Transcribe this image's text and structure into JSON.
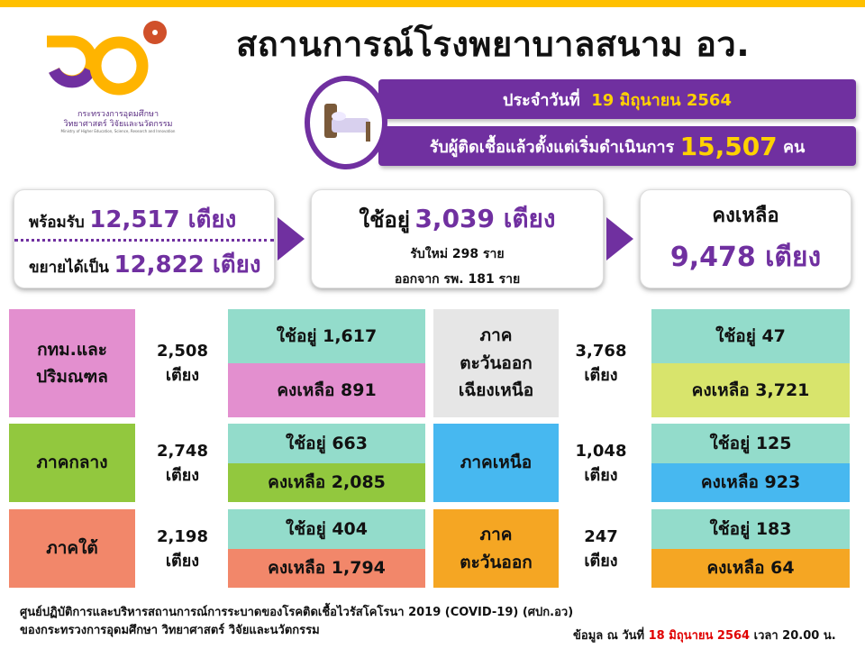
{
  "header": {
    "title": "สถานการณ์โรงพยาบาลสนาม อว.",
    "logo_text": [
      "กระทรวงการอุดมศึกษา",
      "วิทยาศาสตร์ วิจัยและนวัตกรรม",
      "Ministry of Higher Education, Science, Research and Innovation"
    ],
    "date_prefix": "ประจำวันที่",
    "date_value": "19 มิถุนายน 2564",
    "total_prefix": "รับผู้ติดเชื้อแล้วตั้งแต่เริ่มดำเนินการ",
    "total_value": "15,507",
    "total_unit": "คน"
  },
  "summary": {
    "ready_label": "พร้อมรับ",
    "ready_value": "12,517 เตียง",
    "expand_label": "ขยายได้เป็น",
    "expand_value": "12,822 เตียง",
    "in_use_label": "ใช้อยู่",
    "in_use_value": "3,039 เตียง",
    "new_in": "รับใหม่  298  ราย",
    "discharged": "ออกจาก รพ. 181 ราย",
    "remaining_label": "คงเหลือ",
    "remaining_value": "9,478 เตียง"
  },
  "regions": [
    {
      "name": "กทม.และ ปริมณฑล",
      "beds": "2,508",
      "unit": "เตียง",
      "in_use": "ใช้อยู่  1,617",
      "remaining": "คงเหลือ  891",
      "label_color": "#E38FCF",
      "use_color": "#93DCCB",
      "rem_color": "#E38FCF"
    },
    {
      "name": "ภาค ตะวันออก เฉียงเหนือ",
      "beds": "3,768",
      "unit": "เตียง",
      "in_use": "ใช้อยู่   47",
      "remaining": "คงเหลือ  3,721",
      "label_color": "#E6E6E6",
      "use_color": "#93DCCB",
      "rem_color": "#D8E46C"
    },
    {
      "name": "ภาคกลาง",
      "beds": "2,748",
      "unit": "เตียง",
      "in_use": "ใช้อยู่  663",
      "remaining": "คงเหลือ  2,085",
      "label_color": "#92C83E",
      "use_color": "#93DCCB",
      "rem_color": "#92C83E"
    },
    {
      "name": "ภาคเหนือ",
      "beds": "1,048",
      "unit": "เตียง",
      "in_use": "ใช้อยู่  125",
      "remaining": "คงเหลือ  923",
      "label_color": "#47B8F0",
      "use_color": "#93DCCB",
      "rem_color": "#47B8F0"
    },
    {
      "name": "ภาคใต้",
      "beds": "2,198",
      "unit": "เตียง",
      "in_use": "ใช้อยู่  404",
      "remaining": "คงเหลือ 1,794",
      "label_color": "#F2876A",
      "use_color": "#93DCCB",
      "rem_color": "#F2876A"
    },
    {
      "name": "ภาค ตะวันออก",
      "beds": "247",
      "unit": "เตียง",
      "in_use": "ใช้อยู่  183",
      "remaining": "คงเหลือ  64",
      "label_color": "#F5A623",
      "use_color": "#93DCCB",
      "rem_color": "#F5A623"
    }
  ],
  "footer": {
    "line1": "ศูนย์ปฏิบัติการและบริหารสถานการณ์การระบาดของโรคติดเชื้อไวรัสโคโรนา  2019 (COVID-19) (ศปก.อว)",
    "line2": "ของกระทรวงการอุดมศึกษา  วิทยาศาสตร์ วิจัยและนวัตกรรม",
    "data_prefix": "ข้อมูล ณ วันที่",
    "data_date": "18 มิถุนายน 2564",
    "data_suffix": "เวลา  20.00 น."
  },
  "colors": {
    "brand_purple": "#7030A0",
    "brand_yellow": "#FFC000",
    "date_red": "#E00000"
  }
}
